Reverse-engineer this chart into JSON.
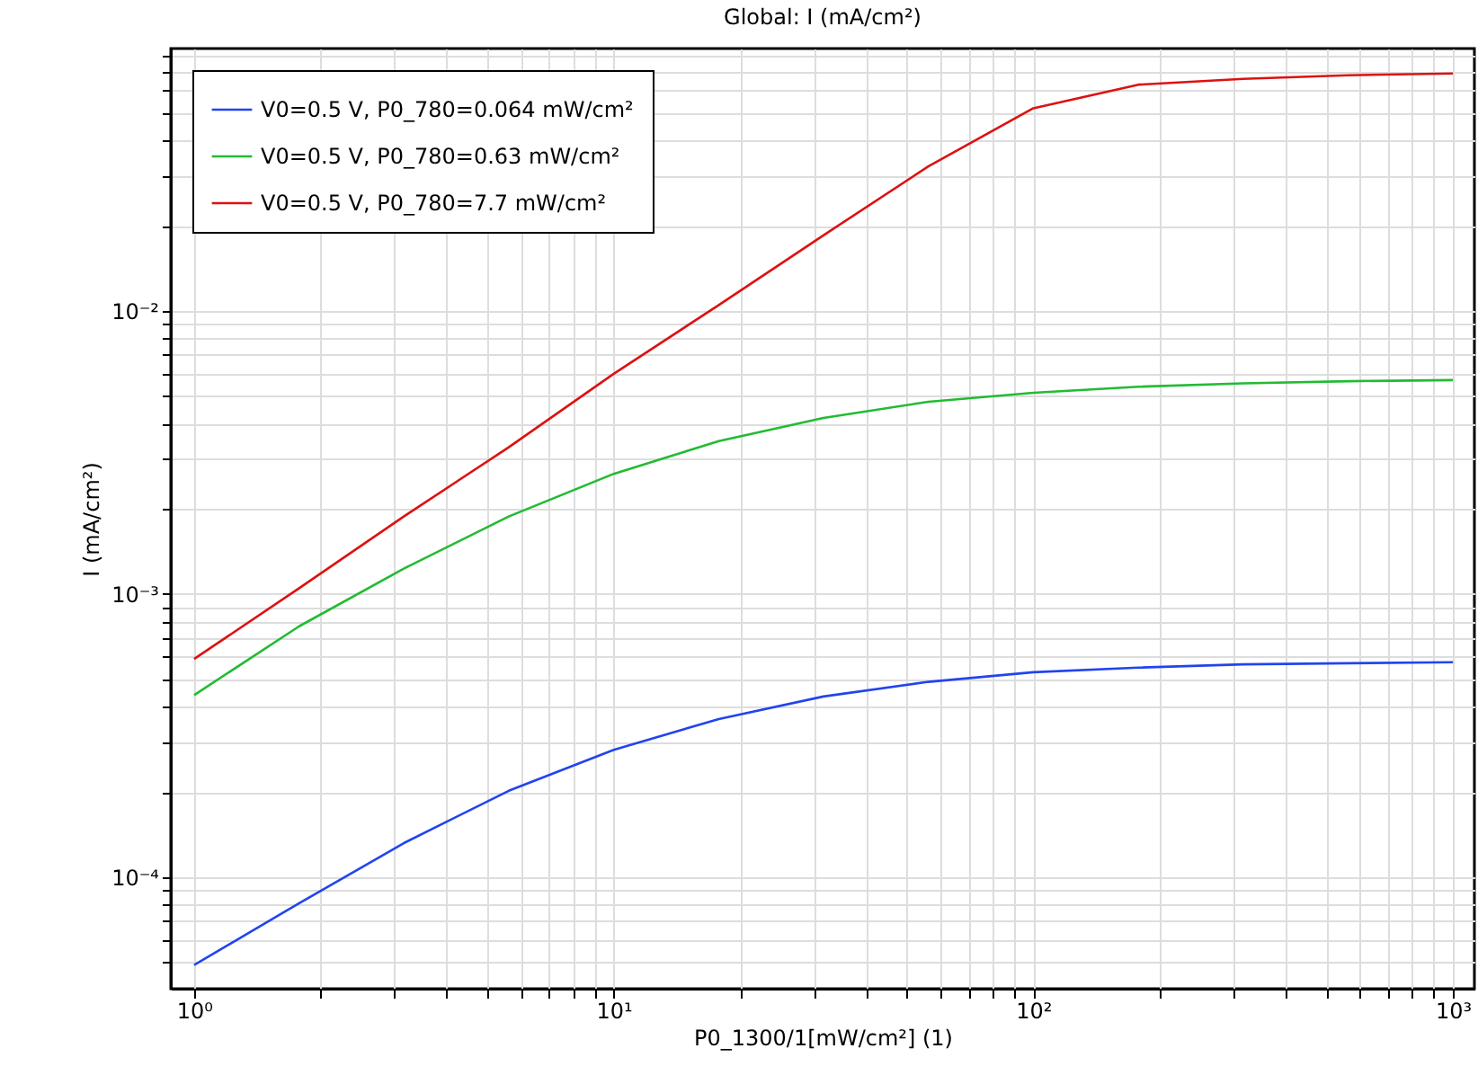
{
  "chart_data": {
    "type": "line",
    "title": "Global: I (mA/cm²)",
    "xlabel": "P0_1300/1[mW/cm²] (1)",
    "ylabel": "I (mA/cm²)",
    "x": [
      1,
      1.78,
      3.16,
      5.62,
      10,
      17.8,
      31.6,
      56.2,
      100,
      178,
      316,
      562,
      1000
    ],
    "series": [
      {
        "name": "V0=0.5 V, P0_780=0.064 mW/cm²",
        "color": "#2244ee",
        "values": [
          4.9e-05,
          8.1e-05,
          0.000132,
          0.000202,
          0.000282,
          0.000362,
          0.000435,
          0.00049,
          0.00053,
          0.00055,
          0.000565,
          0.00057,
          0.000575
        ]
      },
      {
        "name": "V0=0.5 V, P0_780=0.63 mW/cm²",
        "color": "#22bb33",
        "values": [
          0.00044,
          0.00077,
          0.00123,
          0.00188,
          0.00266,
          0.00347,
          0.00419,
          0.00478,
          0.00514,
          0.0054,
          0.00555,
          0.00565,
          0.0057
        ]
      },
      {
        "name": "V0=0.5 V, P0_780=7.7 mW/cm²",
        "color": "#dd1111",
        "values": [
          0.00059,
          0.00105,
          0.00188,
          0.0033,
          0.006,
          0.0105,
          0.0185,
          0.0324,
          0.052,
          0.063,
          0.066,
          0.068,
          0.069
        ]
      }
    ],
    "log": "xy",
    "xlim": [
      0.88,
      1125
    ],
    "ylim": [
      4.04e-05,
      0.0845
    ],
    "xticks": [
      {
        "value": 1,
        "label": "10⁰"
      },
      {
        "value": 2,
        "label": null
      },
      {
        "value": 3,
        "label": null
      },
      {
        "value": 4,
        "label": null
      },
      {
        "value": 5,
        "label": null
      },
      {
        "value": 6,
        "label": null
      },
      {
        "value": 7,
        "label": null
      },
      {
        "value": 8,
        "label": null
      },
      {
        "value": 9,
        "label": null
      },
      {
        "value": 10,
        "label": "10¹"
      },
      {
        "value": 20,
        "label": null
      },
      {
        "value": 30,
        "label": null
      },
      {
        "value": 40,
        "label": null
      },
      {
        "value": 50,
        "label": null
      },
      {
        "value": 60,
        "label": null
      },
      {
        "value": 70,
        "label": null
      },
      {
        "value": 80,
        "label": null
      },
      {
        "value": 90,
        "label": null
      },
      {
        "value": 100,
        "label": "10²"
      },
      {
        "value": 200,
        "label": null
      },
      {
        "value": 300,
        "label": null
      },
      {
        "value": 400,
        "label": null
      },
      {
        "value": 500,
        "label": null
      },
      {
        "value": 600,
        "label": null
      },
      {
        "value": 700,
        "label": null
      },
      {
        "value": 800,
        "label": null
      },
      {
        "value": 900,
        "label": null
      },
      {
        "value": 1000,
        "label": "10³"
      }
    ],
    "yticks": [
      {
        "value": 5e-05,
        "label": null
      },
      {
        "value": 6e-05,
        "label": null
      },
      {
        "value": 7e-05,
        "label": null
      },
      {
        "value": 8e-05,
        "label": null
      },
      {
        "value": 9e-05,
        "label": null
      },
      {
        "value": 0.0001,
        "label": "10⁻⁴"
      },
      {
        "value": 0.0002,
        "label": null
      },
      {
        "value": 0.0003,
        "label": null
      },
      {
        "value": 0.0004,
        "label": null
      },
      {
        "value": 0.0005,
        "label": null
      },
      {
        "value": 0.0006,
        "label": null
      },
      {
        "value": 0.0007,
        "label": null
      },
      {
        "value": 0.0008,
        "label": null
      },
      {
        "value": 0.0009,
        "label": null
      },
      {
        "value": 0.001,
        "label": "10⁻³"
      },
      {
        "value": 0.002,
        "label": null
      },
      {
        "value": 0.003,
        "label": null
      },
      {
        "value": 0.004,
        "label": null
      },
      {
        "value": 0.005,
        "label": null
      },
      {
        "value": 0.006,
        "label": null
      },
      {
        "value": 0.007,
        "label": null
      },
      {
        "value": 0.008,
        "label": null
      },
      {
        "value": 0.009,
        "label": null
      },
      {
        "value": 0.01,
        "label": "10⁻²"
      },
      {
        "value": 0.02,
        "label": null
      },
      {
        "value": 0.03,
        "label": null
      },
      {
        "value": 0.04,
        "label": null
      },
      {
        "value": 0.05,
        "label": null
      },
      {
        "value": 0.06,
        "label": null
      },
      {
        "value": 0.07,
        "label": null
      },
      {
        "value": 0.08,
        "label": null
      }
    ],
    "grid": true,
    "legend": "top left",
    "marker": "none",
    "line_style": "solid"
  }
}
